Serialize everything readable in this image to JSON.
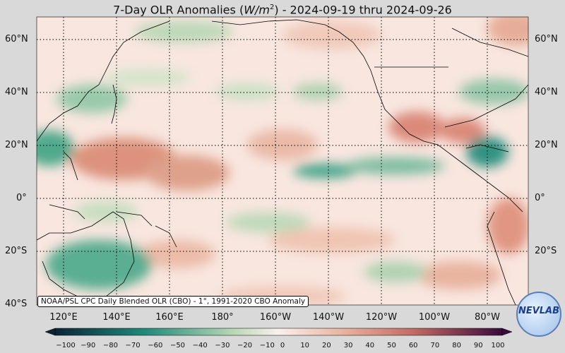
{
  "title": {
    "prefix": "7-Day OLR Anomalies (",
    "unit": "W/m",
    "exp": "2",
    "suffix": ") - 2024-09-19 thru 2024-09-26"
  },
  "lat_labels": [
    "60°N",
    "40°N",
    "20°N",
    "0°",
    "20°S",
    "40°S"
  ],
  "lon_labels": [
    "120°E",
    "140°E",
    "160°E",
    "180°",
    "160°W",
    "140°W",
    "120°W",
    "100°W",
    "80°W"
  ],
  "credit": "NOAA/PSL CPC Daily Blended OLR (CBO) - 1°, 1991-2020 CBO Anomaly",
  "logo": "NEVLAB",
  "colorbar": {
    "ticks": [
      "−100",
      "−90",
      "−80",
      "−70",
      "−60",
      "−50",
      "−40",
      "−30",
      "−20",
      "−10",
      "0",
      "10",
      "20",
      "30",
      "40",
      "50",
      "60",
      "70",
      "80",
      "90",
      "100"
    ],
    "colors": {
      "neg_dark": "#0b2536",
      "neg_teal": "#1f8a7a",
      "neg_light": "#b9d8b6",
      "neutral": "#fbf0ec",
      "pos_light": "#e8b09c",
      "pos_mid": "#c46b64",
      "pos_dark": "#3a0a3c"
    }
  },
  "map_colors": {
    "ocean": "#f6ddd4",
    "positive": "#d98a72",
    "negative": "#2d9d80"
  }
}
